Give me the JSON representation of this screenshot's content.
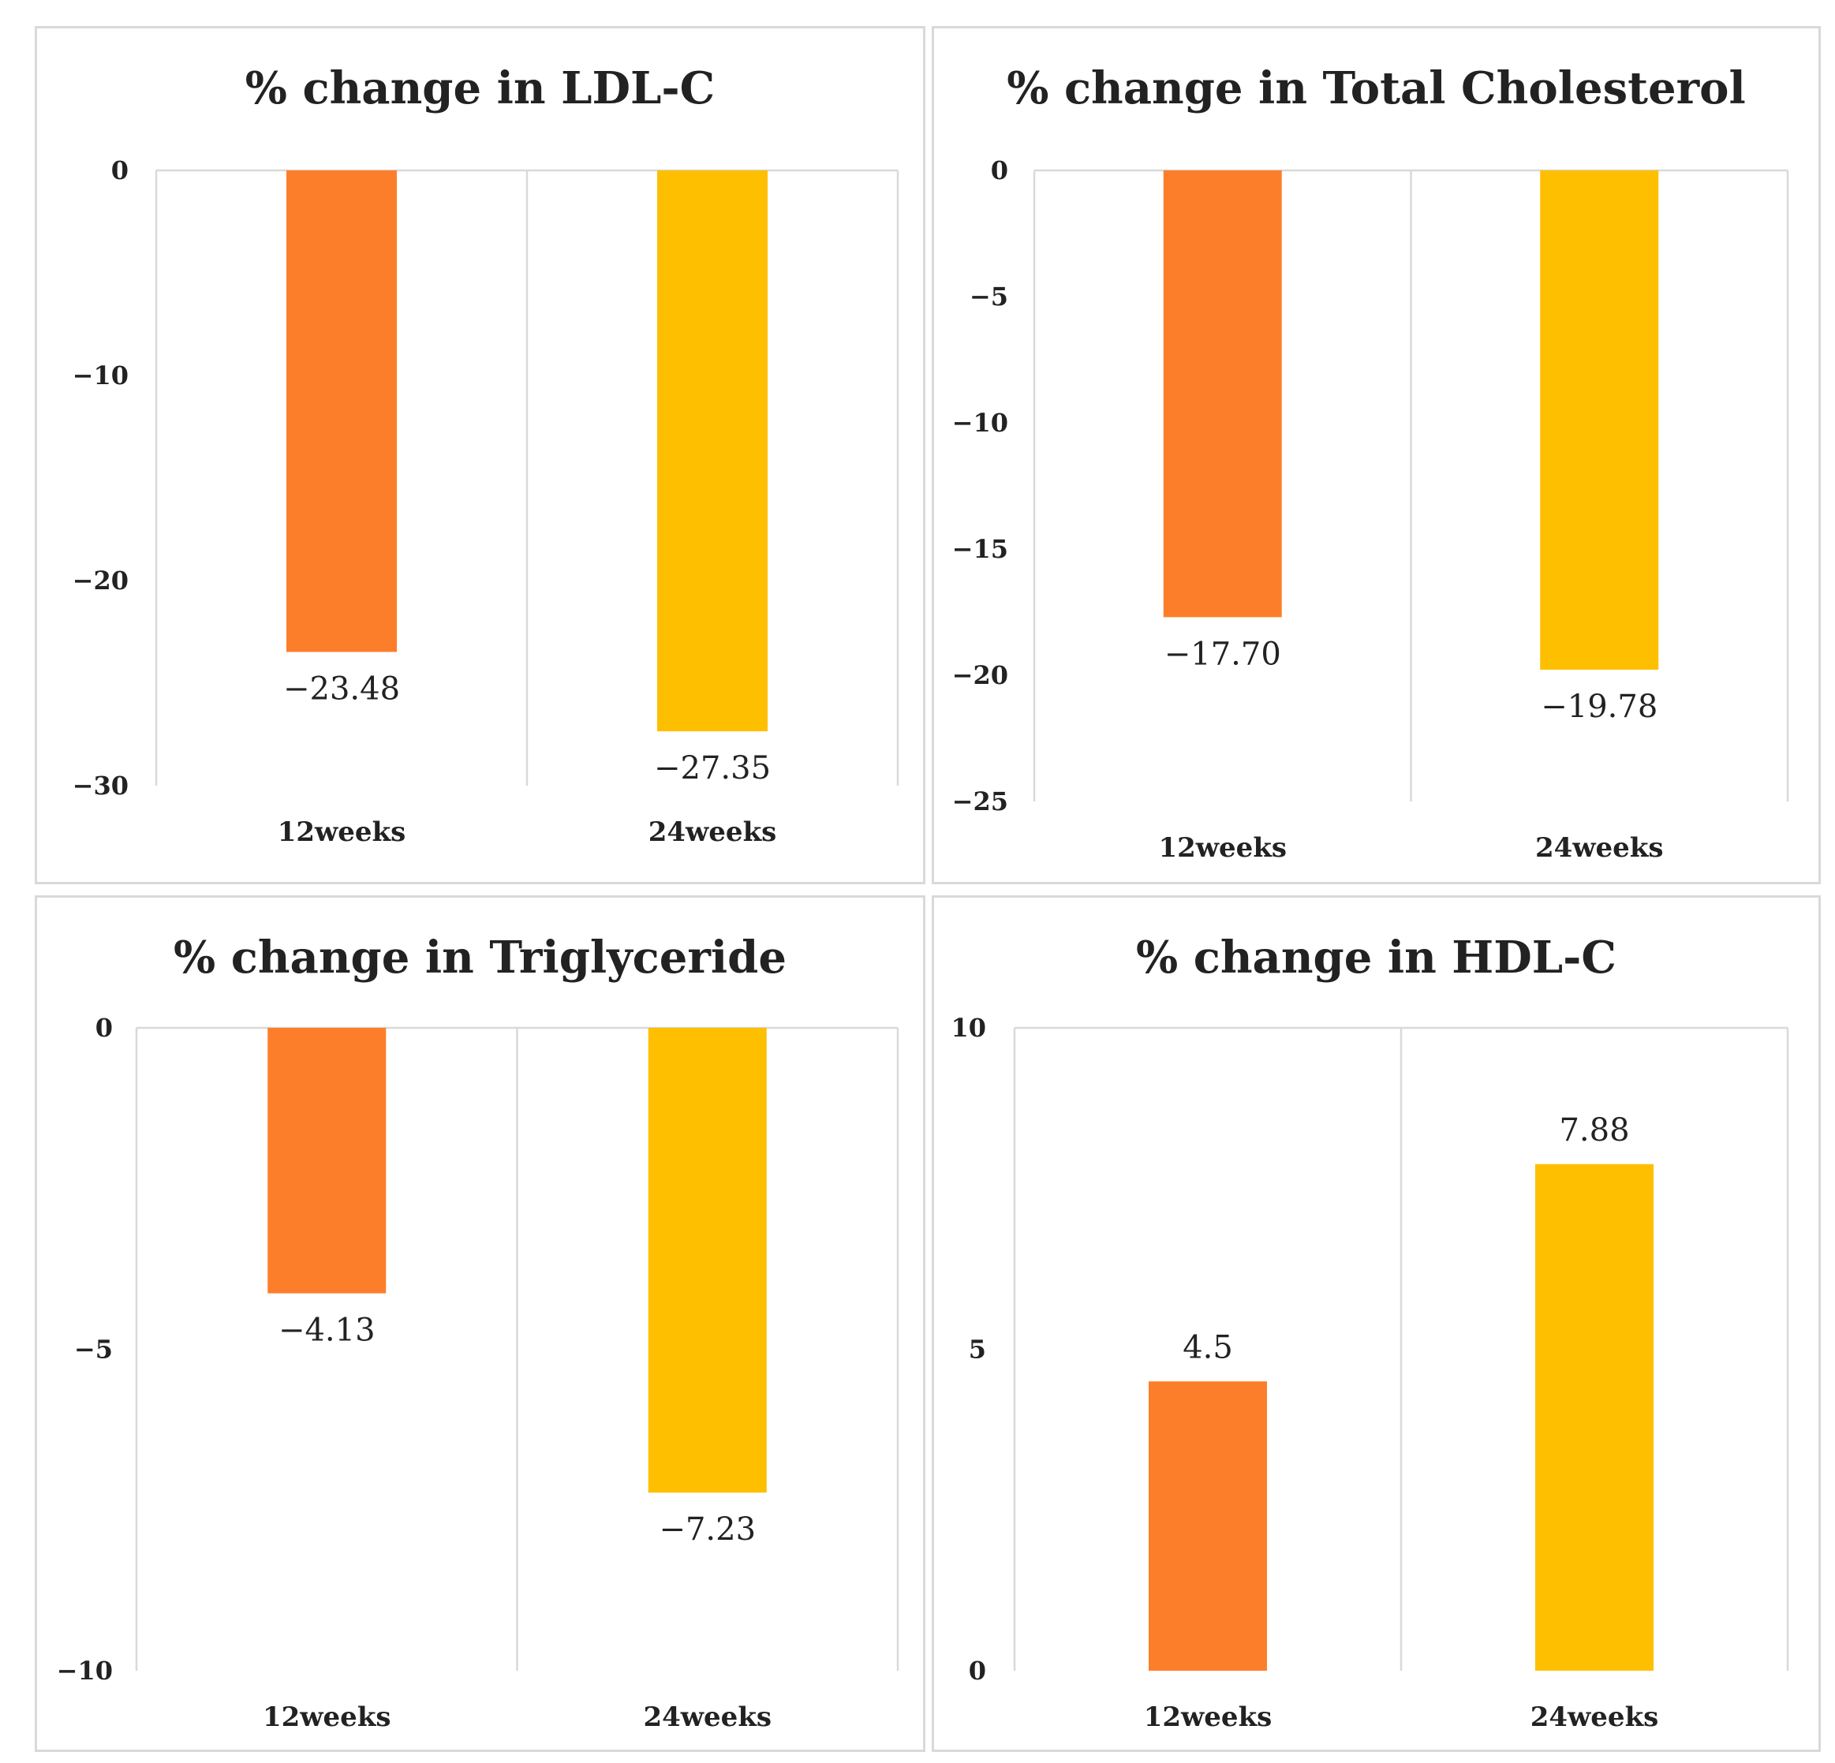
{
  "chart_data": [
    {
      "type": "bar",
      "title": "% change in LDL-C",
      "categories": [
        "12weeks",
        "24weeks"
      ],
      "values": [
        -23.48,
        -27.35
      ],
      "value_labels": [
        "−23.48",
        "−27.35"
      ],
      "ylim": [
        -30,
        0
      ],
      "yticks": [
        0,
        -10,
        -20,
        -30
      ],
      "ytick_labels": [
        "0",
        "−10",
        "−20",
        "−30"
      ],
      "xlabel": "",
      "ylabel": "",
      "colors": [
        "#fd7e2a",
        "#fdbf00"
      ],
      "grid": "vertical",
      "legend": "none"
    },
    {
      "type": "bar",
      "title": "% change in Total Cholesterol",
      "categories": [
        "12weeks",
        "24weeks"
      ],
      "values": [
        -17.7,
        -19.78
      ],
      "value_labels": [
        "−17.70",
        "−19.78"
      ],
      "ylim": [
        -25,
        0
      ],
      "yticks": [
        0,
        -5,
        -10,
        -15,
        -20,
        -25
      ],
      "ytick_labels": [
        "0",
        "−5",
        "−10",
        "−15",
        "−20",
        "−25"
      ],
      "xlabel": "",
      "ylabel": "",
      "colors": [
        "#fd7e2a",
        "#fdbf00"
      ],
      "grid": "vertical",
      "legend": "none"
    },
    {
      "type": "bar",
      "title": "% change in Triglyceride",
      "categories": [
        "12weeks",
        "24weeks"
      ],
      "values": [
        -4.13,
        -7.23
      ],
      "value_labels": [
        "−4.13",
        "−7.23"
      ],
      "ylim": [
        -10,
        0
      ],
      "yticks": [
        0,
        -5,
        -10
      ],
      "ytick_labels": [
        "0",
        "−5",
        "−10"
      ],
      "xlabel": "",
      "ylabel": "",
      "colors": [
        "#fd7e2a",
        "#fdbf00"
      ],
      "grid": "vertical",
      "legend": "none"
    },
    {
      "type": "bar",
      "title": "% change in HDL-C",
      "categories": [
        "12weeks",
        "24weeks"
      ],
      "values": [
        4.5,
        7.88
      ],
      "value_labels": [
        "4.5",
        "7.88"
      ],
      "ylim": [
        0,
        10
      ],
      "yticks": [
        10,
        5,
        0
      ],
      "ytick_labels": [
        "10",
        "5",
        "0"
      ],
      "xlabel": "",
      "ylabel": "",
      "colors": [
        "#fd7e2a",
        "#fdbf00"
      ],
      "grid": "vertical",
      "legend": "none"
    }
  ]
}
